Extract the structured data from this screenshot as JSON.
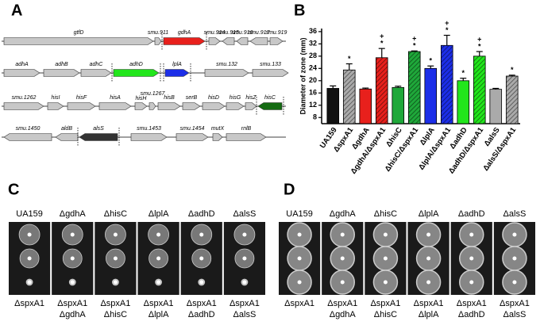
{
  "panel_letters": [
    "A",
    "B",
    "C",
    "D"
  ],
  "gene_rows": [
    [
      {
        "label": "gtfD"
      },
      {
        "label": "smu.911"
      },
      {
        "label": "gdhA",
        "color": "#e8201c"
      },
      {
        "label": "smu.914"
      },
      {
        "label": "smu.915"
      },
      {
        "label": "smu.916"
      },
      {
        "label": "smu.917"
      },
      {
        "label": "smu.919"
      }
    ],
    [
      {
        "label": "adhA"
      },
      {
        "label": "adhB"
      },
      {
        "label": "adhC"
      },
      {
        "label": "adhD",
        "color": "#22e61c"
      },
      {
        "label": "lplA",
        "color": "#1c2ee8"
      },
      {
        "label": "smu.132"
      },
      {
        "label": "smu.133"
      }
    ],
    [
      {
        "label": "smu.1262"
      },
      {
        "label": "hisI"
      },
      {
        "label": "hisF"
      },
      {
        "label": "hisA"
      },
      {
        "label": "hisH"
      },
      {
        "label": "smu.1267"
      },
      {
        "label": "hisB"
      },
      {
        "label": "serB"
      },
      {
        "label": "hisD"
      },
      {
        "label": "hisG"
      },
      {
        "label": "hisZ"
      },
      {
        "label": "hisC",
        "color": "#146b12"
      }
    ],
    [
      {
        "label": "smu.1450"
      },
      {
        "label": "aldB"
      },
      {
        "label": "alsS",
        "color": "#333333"
      },
      {
        "label": "smu.1453"
      },
      {
        "label": "smu.1454"
      },
      {
        "label": "mutX"
      },
      {
        "label": "rnlB"
      }
    ]
  ],
  "chart_data": {
    "type": "bar",
    "y_label": "Diameter of zone (mm)",
    "categories": [
      "UA159",
      "ΔspxA1",
      "ΔgdhA",
      "ΔgdhA/ΔspxA1",
      "ΔhisC",
      "ΔhisC/ΔspxA1",
      "ΔlplA",
      "ΔlplA/ΔspxA1",
      "ΔadhD",
      "ΔadhD/ΔspxA1",
      "ΔalsS",
      "ΔalsS/ΔspxA1"
    ],
    "values": [
      17.5,
      23.5,
      17.3,
      27.5,
      17.8,
      29.5,
      24,
      31.5,
      20,
      28,
      17.2,
      21.5
    ],
    "errors": [
      0.8,
      2,
      0.3,
      3,
      0.4,
      0.2,
      0.8,
      3.3,
      0.8,
      1.5,
      0.3,
      0.3
    ],
    "colors": [
      "#111111",
      "#aaaaaa",
      "#e8201c",
      "#e8201c",
      "#1fa83a",
      "#1fa83a",
      "#1c2ee8",
      "#1c2ee8",
      "#22e61c",
      "#22e61c",
      "#aaaaaa",
      "#aaaaaa"
    ],
    "hatched": [
      false,
      true,
      false,
      true,
      false,
      true,
      false,
      true,
      false,
      true,
      false,
      true
    ],
    "star": [
      null,
      "*",
      null,
      "*",
      null,
      "*",
      "*",
      "*",
      "*",
      "*",
      null,
      "*"
    ],
    "plus": [
      null,
      null,
      null,
      "+",
      null,
      "+",
      null,
      "+",
      null,
      "+",
      null,
      null
    ],
    "ylim": [
      6,
      37
    ],
    "yticks": [
      8,
      12,
      16,
      20,
      24,
      28,
      32,
      36
    ]
  },
  "panel_C": {
    "top": [
      "UA159",
      "ΔgdhA",
      "ΔhisC",
      "ΔlplA",
      "ΔadhD",
      "ΔalsS"
    ],
    "bottom": [
      [
        "ΔspxA1"
      ],
      [
        "ΔspxA1",
        "ΔgdhA"
      ],
      [
        "ΔspxA1",
        "ΔhisC"
      ],
      [
        "ΔspxA1",
        "ΔlplA"
      ],
      [
        "ΔspxA1",
        "ΔadhD"
      ],
      [
        "ΔspxA1",
        "ΔalsS"
      ]
    ]
  },
  "panel_D": {
    "top": [
      "UA159",
      "ΔgdhA",
      "ΔhisC",
      "ΔlplA",
      "ΔadhD",
      "ΔalsS"
    ],
    "bottom": [
      [
        "ΔspxA1"
      ],
      [
        "ΔspxA1",
        "ΔgdhA"
      ],
      [
        "ΔspxA1",
        "ΔhisC"
      ],
      [
        "ΔspxA1",
        "ΔlplA"
      ],
      [
        "ΔspxA1",
        "ΔadhD"
      ],
      [
        "ΔspxA1",
        "ΔalsS"
      ]
    ]
  }
}
